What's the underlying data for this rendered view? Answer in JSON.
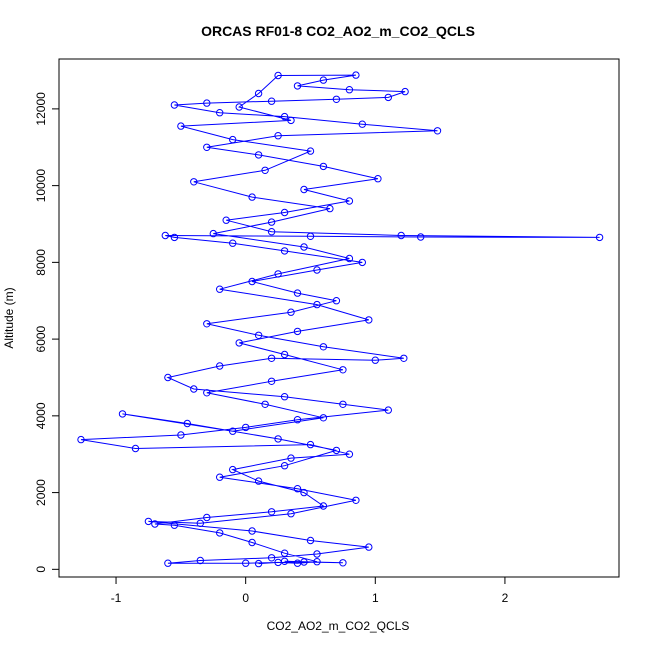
{
  "chart_data": {
    "type": "scatter",
    "title": "ORCAS RF01-8 CO2_AO2_m_CO2_QCLS",
    "xlabel": "CO2_AO2_m_CO2_QCLS",
    "ylabel": "Altitude (m)",
    "xlim": [
      -1.44,
      2.88
    ],
    "ylim": [
      -200,
      13300
    ],
    "x_ticks": [
      -1,
      0,
      1,
      2
    ],
    "y_ticks": [
      0,
      2000,
      4000,
      6000,
      8000,
      10000,
      12000
    ],
    "grid": false,
    "legend": "none",
    "color": "#0000ff",
    "marker": "open-circle-connected",
    "series": [
      {
        "values": [
          {
            "x": 0.1,
            "y": 150
          },
          {
            "x": 0.25,
            "y": 180
          },
          {
            "x": 0.4,
            "y": 160
          },
          {
            "x": 0.55,
            "y": 200
          },
          {
            "x": 0.3,
            "y": 420
          },
          {
            "x": 0.05,
            "y": 700
          },
          {
            "x": -0.2,
            "y": 950
          },
          {
            "x": -0.55,
            "y": 1150
          },
          {
            "x": -0.7,
            "y": 1180
          },
          {
            "x": -0.3,
            "y": 1350
          },
          {
            "x": 0.2,
            "y": 1500
          },
          {
            "x": 0.6,
            "y": 1650
          },
          {
            "x": 0.45,
            "y": 2000
          },
          {
            "x": 0.1,
            "y": 2300
          },
          {
            "x": -0.1,
            "y": 2600
          },
          {
            "x": 0.35,
            "y": 2900
          },
          {
            "x": 0.8,
            "y": 3000
          },
          {
            "x": 0.5,
            "y": 3250
          },
          {
            "x": -0.85,
            "y": 3150
          },
          {
            "x": -1.27,
            "y": 3380
          },
          {
            "x": -0.5,
            "y": 3500
          },
          {
            "x": 0.0,
            "y": 3700
          },
          {
            "x": 0.4,
            "y": 3900
          },
          {
            "x": 1.1,
            "y": 4150
          },
          {
            "x": 0.75,
            "y": 4300
          },
          {
            "x": 0.3,
            "y": 4500
          },
          {
            "x": -0.4,
            "y": 4700
          },
          {
            "x": -0.6,
            "y": 5000
          },
          {
            "x": -0.2,
            "y": 5300
          },
          {
            "x": 0.2,
            "y": 5500
          },
          {
            "x": 1.0,
            "y": 5450
          },
          {
            "x": 1.22,
            "y": 5500
          },
          {
            "x": 0.6,
            "y": 5800
          },
          {
            "x": 0.1,
            "y": 6100
          },
          {
            "x": -0.3,
            "y": 6400
          },
          {
            "x": 0.35,
            "y": 6700
          },
          {
            "x": 0.7,
            "y": 7000
          },
          {
            "x": 0.4,
            "y": 7200
          },
          {
            "x": 0.05,
            "y": 7500
          },
          {
            "x": 0.55,
            "y": 7800
          },
          {
            "x": 0.9,
            "y": 8000
          },
          {
            "x": 0.3,
            "y": 8300
          },
          {
            "x": -0.1,
            "y": 8500
          },
          {
            "x": -0.55,
            "y": 8650
          },
          {
            "x": -0.62,
            "y": 8700
          },
          {
            "x": 0.5,
            "y": 8680
          },
          {
            "x": 1.35,
            "y": 8660
          },
          {
            "x": 2.73,
            "y": 8650
          },
          {
            "x": 1.2,
            "y": 8700
          },
          {
            "x": 0.2,
            "y": 8800
          },
          {
            "x": -0.15,
            "y": 9100
          },
          {
            "x": 0.3,
            "y": 9300
          },
          {
            "x": 0.8,
            "y": 9600
          },
          {
            "x": 0.45,
            "y": 9900
          },
          {
            "x": 1.02,
            "y": 10180
          },
          {
            "x": 0.6,
            "y": 10500
          },
          {
            "x": 0.1,
            "y": 10800
          },
          {
            "x": -0.3,
            "y": 11000
          },
          {
            "x": 0.25,
            "y": 11300
          },
          {
            "x": 1.48,
            "y": 11430
          },
          {
            "x": 0.9,
            "y": 11600
          },
          {
            "x": 0.3,
            "y": 11800
          },
          {
            "x": -0.2,
            "y": 11900
          },
          {
            "x": -0.55,
            "y": 12100
          },
          {
            "x": -0.3,
            "y": 12150
          },
          {
            "x": 0.2,
            "y": 12200
          },
          {
            "x": 0.7,
            "y": 12250
          },
          {
            "x": 1.1,
            "y": 12300
          },
          {
            "x": 1.23,
            "y": 12450
          },
          {
            "x": 0.8,
            "y": 12500
          },
          {
            "x": 0.4,
            "y": 12600
          },
          {
            "x": 0.6,
            "y": 12750
          },
          {
            "x": 0.85,
            "y": 12880
          },
          {
            "x": 0.25,
            "y": 12870
          },
          {
            "x": 0.1,
            "y": 12400
          },
          {
            "x": -0.05,
            "y": 12050
          },
          {
            "x": 0.35,
            "y": 11700
          },
          {
            "x": -0.5,
            "y": 11550
          },
          {
            "x": -0.1,
            "y": 11200
          },
          {
            "x": 0.5,
            "y": 10900
          },
          {
            "x": 0.15,
            "y": 10400
          },
          {
            "x": -0.4,
            "y": 10100
          },
          {
            "x": 0.05,
            "y": 9700
          },
          {
            "x": 0.65,
            "y": 9400
          },
          {
            "x": 0.2,
            "y": 9050
          },
          {
            "x": -0.25,
            "y": 8750
          },
          {
            "x": 0.45,
            "y": 8400
          },
          {
            "x": 0.8,
            "y": 8100
          },
          {
            "x": 0.25,
            "y": 7700
          },
          {
            "x": -0.2,
            "y": 7300
          },
          {
            "x": 0.55,
            "y": 6900
          },
          {
            "x": 0.95,
            "y": 6500
          },
          {
            "x": 0.4,
            "y": 6200
          },
          {
            "x": -0.05,
            "y": 5900
          },
          {
            "x": 0.3,
            "y": 5600
          },
          {
            "x": 0.75,
            "y": 5200
          },
          {
            "x": 0.2,
            "y": 4900
          },
          {
            "x": -0.3,
            "y": 4600
          },
          {
            "x": 0.15,
            "y": 4300
          },
          {
            "x": 0.6,
            "y": 3950
          },
          {
            "x": -0.1,
            "y": 3600
          },
          {
            "x": -0.95,
            "y": 4050
          },
          {
            "x": -0.45,
            "y": 3800
          },
          {
            "x": 0.25,
            "y": 3400
          },
          {
            "x": 0.7,
            "y": 3100
          },
          {
            "x": 0.3,
            "y": 2700
          },
          {
            "x": -0.2,
            "y": 2400
          },
          {
            "x": 0.4,
            "y": 2100
          },
          {
            "x": 0.85,
            "y": 1800
          },
          {
            "x": 0.35,
            "y": 1450
          },
          {
            "x": -0.35,
            "y": 1200
          },
          {
            "x": -0.75,
            "y": 1250
          },
          {
            "x": 0.05,
            "y": 1000
          },
          {
            "x": 0.5,
            "y": 750
          },
          {
            "x": 0.95,
            "y": 580
          },
          {
            "x": 0.55,
            "y": 400
          },
          {
            "x": 0.2,
            "y": 300
          },
          {
            "x": -0.35,
            "y": 230
          },
          {
            "x": -0.6,
            "y": 160
          },
          {
            "x": 0.0,
            "y": 160
          },
          {
            "x": 0.45,
            "y": 190
          },
          {
            "x": 0.75,
            "y": 170
          },
          {
            "x": 0.3,
            "y": 210
          }
        ]
      }
    ]
  }
}
